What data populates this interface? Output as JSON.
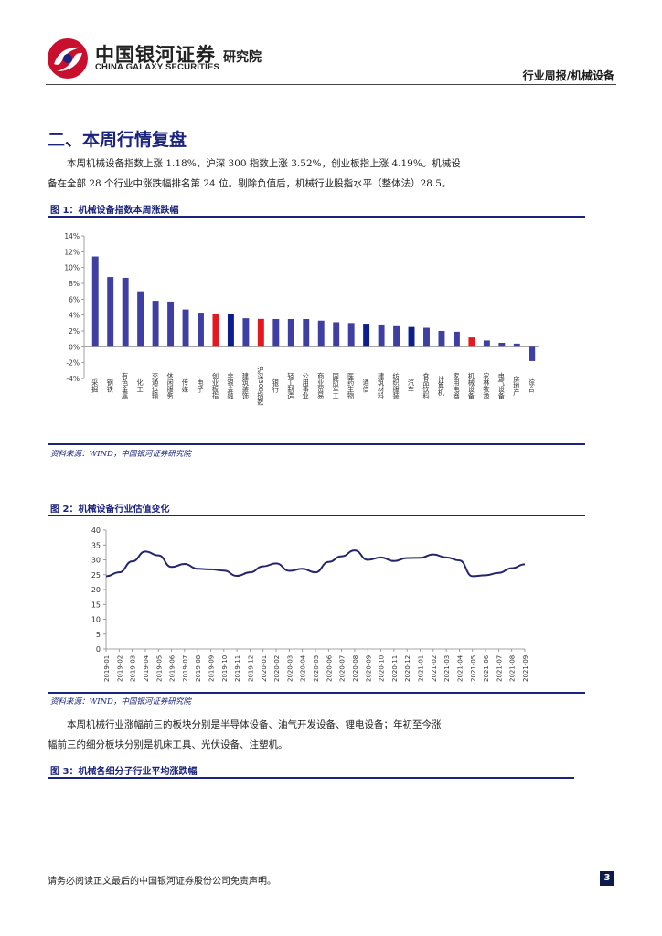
{
  "header": {
    "brand_cn": "中国银河证券",
    "brand_sub": "研究院",
    "brand_en": "CHINA GALAXY SECURITIES",
    "report_type": "行业周报/机械设备"
  },
  "section": {
    "title": "二、本周行情复盘",
    "paragraph1": [
      "本周机械设备指数上涨 1.18%，沪深 300 指数上涨 3.52%，创业板指上涨 4.19%。机械设",
      "备在全部 28 个行业中涨跌幅排名第 24 位。剔除负值后，机械行业股指水平（整体法）28.5。"
    ],
    "paragraph2": [
      "本周机械行业涨幅前三的板块分别是半导体设备、油气开发设备、锂电设备；年初至今涨",
      "幅前三的细分板块分别是机床工具、光伏设备、注塑机。"
    ]
  },
  "figures": {
    "fig1_title": "图 1：机械设备指数本周涨跌幅",
    "fig1_source": "资料来源：WIND，中国银河证券研究院",
    "fig2_title": "图 2：机械设备行业估值变化",
    "fig2_source": "资料来源：WIND，中国银河证券研究院",
    "fig3_title": "图 3：机械各细分子行业平均涨跌幅"
  },
  "footer": {
    "disclaimer": "请务必阅读正文最后的中国银河证券股份公司免责声明。",
    "page_number": "3"
  },
  "colors": {
    "brand_navy": "#1a237e",
    "bar_default": "#3f3fa3",
    "bar_highlight": "#e5171f",
    "bar_dark": "#0b1e8c",
    "line": "#25256e"
  },
  "chart_data": [
    {
      "type": "bar",
      "title": "",
      "categories": [
        "采掘",
        "钢铁",
        "有色金属",
        "化工",
        "交通运输",
        "休闲服务",
        "传媒",
        "电子",
        "创业板指",
        "非银金融",
        "建筑装饰",
        "沪深300指数",
        "银行",
        "轻工制造",
        "公用事业",
        "商业贸易",
        "国防军工",
        "医药生物",
        "通信",
        "建筑材料",
        "纺织服装",
        "汽车",
        "食品饮料",
        "计算机",
        "家用电器",
        "机械设备",
        "农林牧渔",
        "电气设备",
        "房地产",
        "综合"
      ],
      "values": [
        11.4,
        8.8,
        8.7,
        7.0,
        5.8,
        5.7,
        4.7,
        4.3,
        4.19,
        4.15,
        3.6,
        3.52,
        3.5,
        3.5,
        3.5,
        3.3,
        3.1,
        3.0,
        2.8,
        2.7,
        2.6,
        2.5,
        2.4,
        2.0,
        1.9,
        1.18,
        0.8,
        0.5,
        0.4,
        -1.8
      ],
      "highlight": {
        "创业板指": "red",
        "沪深300指数": "red",
        "机械设备": "red",
        "非银金融": "dark",
        "通信": "dark",
        "汽车": "dark"
      },
      "ylim": [
        -4,
        14
      ],
      "yticks": [
        -4,
        -2,
        0,
        2,
        4,
        6,
        8,
        10,
        12,
        14
      ],
      "ytick_suffix": "%",
      "grid": false,
      "legend": "none"
    },
    {
      "type": "line",
      "title": "",
      "ylim": [
        0,
        40
      ],
      "yticks": [
        0,
        5,
        10,
        15,
        20,
        25,
        30,
        35,
        40
      ],
      "xticks": [
        "2019-01",
        "2019-02",
        "2019-03",
        "2019-04",
        "2019-05",
        "2019-06",
        "2019-07",
        "2019-08",
        "2019-09",
        "2019-10",
        "2019-11",
        "2019-12",
        "2020-01",
        "2020-02",
        "2020-03",
        "2020-04",
        "2020-05",
        "2020-06",
        "2020-07",
        "2020-08",
        "2020-09",
        "2020-10",
        "2020-11",
        "2020-12",
        "2021-01",
        "2021-02",
        "2021-03",
        "2021-04",
        "2021-05",
        "2021-06",
        "2021-07",
        "2021-08",
        "2021-09"
      ],
      "series": [
        {
          "x": [
            "2019-01",
            "2019-02",
            "2019-03",
            "2019-04",
            "2019-05",
            "2019-06",
            "2019-07",
            "2019-08",
            "2019-09",
            "2019-10",
            "2019-11",
            "2019-12",
            "2020-01",
            "2020-02",
            "2020-03",
            "2020-04",
            "2020-05",
            "2020-06",
            "2020-07",
            "2020-08",
            "2020-09",
            "2020-10",
            "2020-11",
            "2020-12",
            "2021-01",
            "2021-02",
            "2021-03",
            "2021-04",
            "2021-05",
            "2021-06",
            "2021-07",
            "2021-08",
            "2021-09"
          ],
          "y": [
            24.5,
            25.8,
            29.5,
            32.8,
            31.5,
            27.6,
            28.6,
            27.0,
            26.8,
            26.4,
            24.6,
            25.8,
            27.8,
            28.8,
            26.3,
            27.0,
            25.8,
            29.3,
            31.2,
            33.2,
            30.0,
            30.8,
            29.6,
            30.6,
            30.7,
            31.8,
            30.8,
            29.8,
            24.5,
            24.8,
            25.6,
            27.2,
            28.5
          ]
        }
      ],
      "grid": false,
      "legend": "none"
    }
  ]
}
